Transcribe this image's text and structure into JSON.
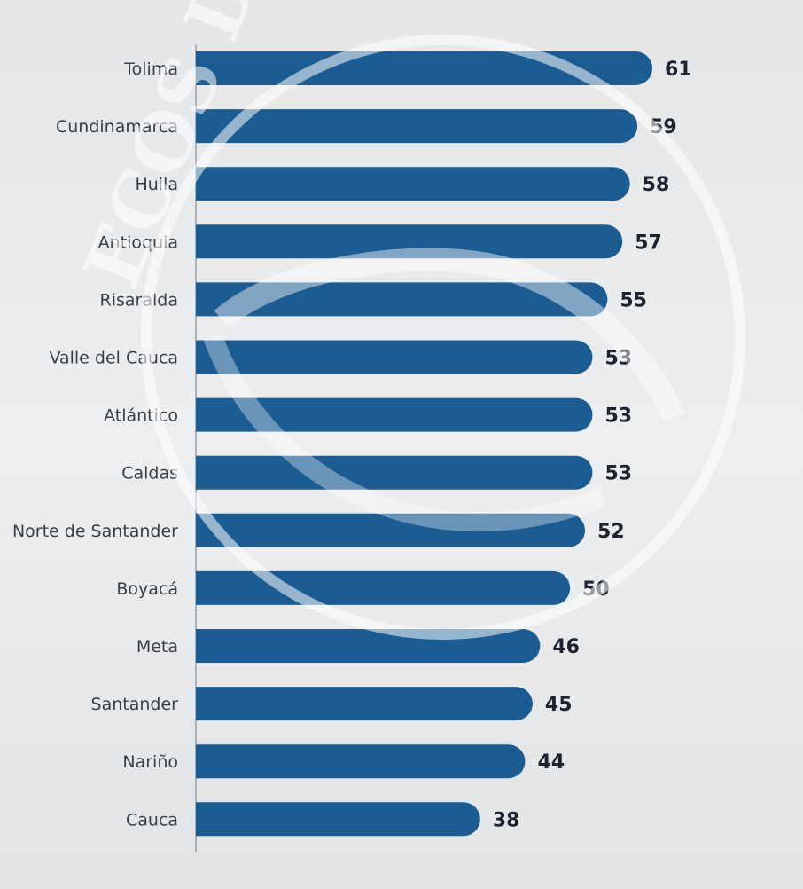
{
  "chart_data": {
    "type": "bar",
    "orientation": "horizontal",
    "categories": [
      "Tolima",
      "Cundinamarca",
      "Huila",
      "Antioquia",
      "Risaralda",
      "Valle del Cauca",
      "Atlántico",
      "Caldas",
      "Norte de Santander",
      "Boyacá",
      "Meta",
      "Santander",
      "Nariño",
      "Cauca"
    ],
    "values": [
      61,
      59,
      58,
      57,
      55,
      53,
      53,
      53,
      52,
      50,
      46,
      45,
      44,
      38
    ],
    "xlim": [
      0,
      61
    ],
    "grid": false,
    "legend": "none"
  },
  "watermark": {
    "text": "ECOS DEL COMBEIMA"
  },
  "colors": {
    "bar": "#1b5c92",
    "text": "#3a3f46",
    "value_text": "#1c2430"
  }
}
